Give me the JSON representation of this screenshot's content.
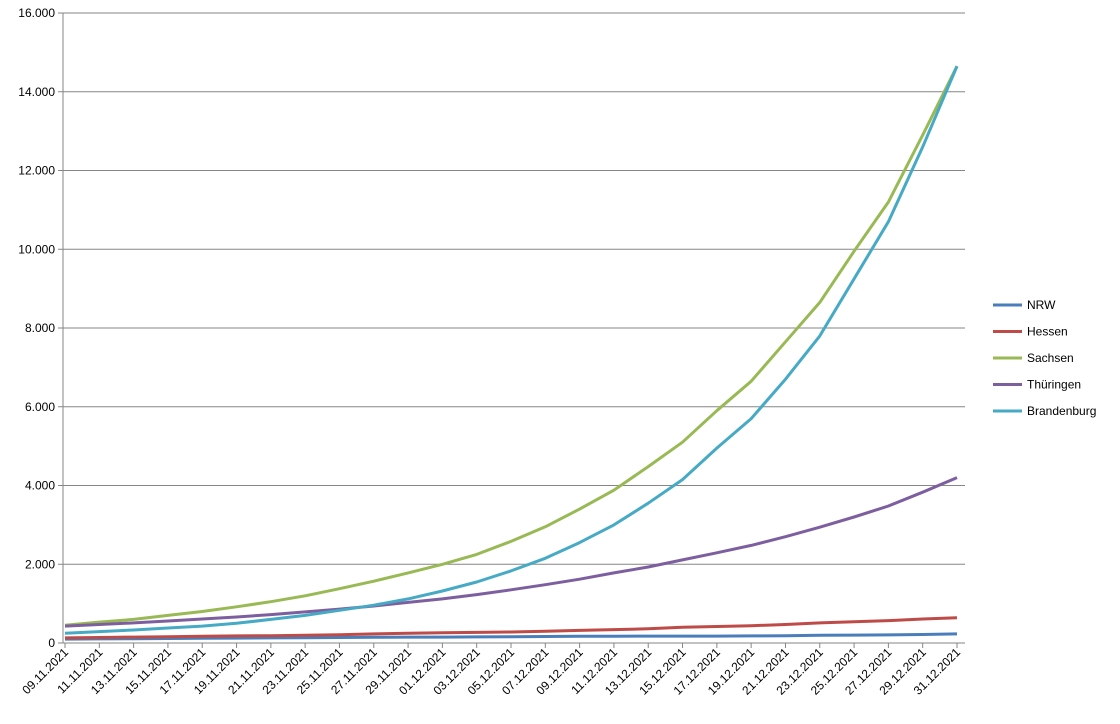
{
  "chart_data": {
    "type": "line",
    "categories": [
      "09.11.2021",
      "11.11.2021",
      "13.11.2021",
      "15.11.2021",
      "17.11.2021",
      "19.11.2021",
      "21.11.2021",
      "23.11.2021",
      "25.11.2021",
      "27.11.2021",
      "29.11.2021",
      "01.12.2021",
      "03.12.2021",
      "05.12.2021",
      "07.12.2021",
      "09.12.2021",
      "11.12.2021",
      "13.12.2021",
      "15.12.2021",
      "17.12.2021",
      "19.12.2021",
      "21.12.2021",
      "23.12.2021",
      "25.12.2021",
      "27.12.2021",
      "29.12.2021",
      "31.12.2021"
    ],
    "series": [
      {
        "name": "NRW",
        "color": "#4a7ebb",
        "values": [
          100,
          105,
          110,
          115,
          120,
          125,
          130,
          135,
          140,
          145,
          150,
          150,
          155,
          160,
          165,
          170,
          170,
          175,
          175,
          175,
          180,
          185,
          195,
          200,
          205,
          215,
          230
        ]
      },
      {
        "name": "Hessen",
        "color": "#be4b48",
        "values": [
          130,
          140,
          150,
          160,
          170,
          180,
          185,
          195,
          210,
          230,
          250,
          260,
          270,
          280,
          300,
          320,
          340,
          360,
          400,
          420,
          440,
          470,
          510,
          540,
          570,
          610,
          640
        ]
      },
      {
        "name": "Sachsen",
        "color": "#98b954",
        "values": [
          450,
          530,
          600,
          700,
          800,
          920,
          1050,
          1200,
          1380,
          1570,
          1780,
          2000,
          2250,
          2580,
          2950,
          3400,
          3880,
          4480,
          5100,
          5900,
          6650,
          7650,
          8650,
          9950,
          11200,
          12900,
          14650
        ]
      },
      {
        "name": "Thüringen",
        "color": "#7d5fa0",
        "values": [
          430,
          470,
          510,
          560,
          610,
          660,
          720,
          790,
          860,
          940,
          1030,
          1120,
          1230,
          1350,
          1480,
          1620,
          1780,
          1930,
          2110,
          2290,
          2480,
          2700,
          2940,
          3200,
          3480,
          3830,
          4200
        ]
      },
      {
        "name": "Brandenburg",
        "color": "#46aac5",
        "values": [
          250,
          290,
          330,
          380,
          430,
          500,
          600,
          700,
          830,
          960,
          1120,
          1320,
          1550,
          1830,
          2150,
          2550,
          3000,
          3550,
          4150,
          4950,
          5700,
          6700,
          7800,
          9250,
          10700,
          12600,
          14650
        ]
      }
    ],
    "ylim": [
      0,
      16000
    ],
    "yticks": [
      0,
      {
        "value": 2000,
        "label": "2.000"
      },
      {
        "value": 4000,
        "label": "4.000"
      },
      {
        "value": 6000,
        "label": "6.000"
      },
      {
        "value": 8000,
        "label": "8.000"
      },
      {
        "value": 10000,
        "label": "10.000"
      },
      {
        "value": 12000,
        "label": "12.000"
      },
      {
        "value": 14000,
        "label": "14.000"
      },
      {
        "value": 16000,
        "label": "16.000"
      }
    ],
    "grid": true,
    "legend": "right"
  }
}
